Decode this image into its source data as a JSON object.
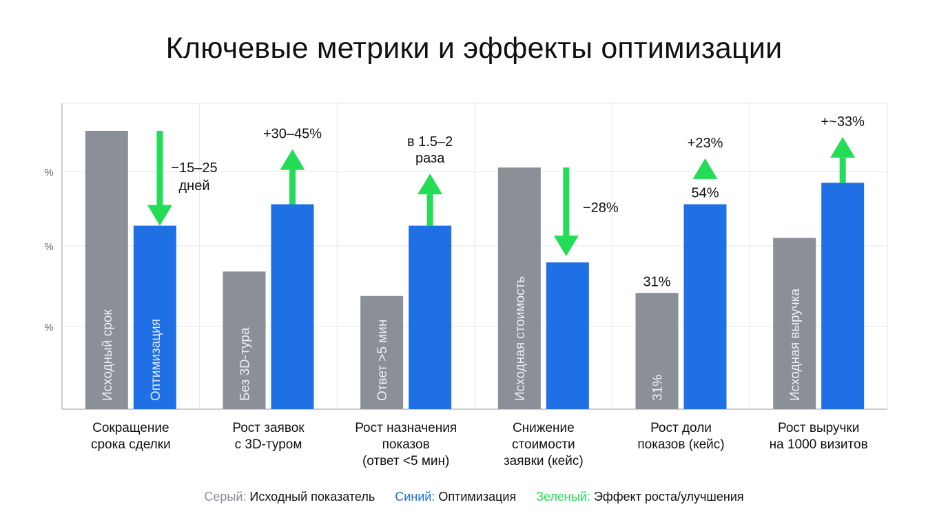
{
  "chart_data": {
    "type": "bar",
    "title": "Ключевые метрики и эффекты оптимизации",
    "y_tick_labels": [
      "%",
      "%",
      "%"
    ],
    "ylim": [
      0,
      100
    ],
    "categories": [
      [
        "Сокращение",
        "срока сделки"
      ],
      [
        "Рост заявок",
        "с 3D-туром"
      ],
      [
        "Рост назначения",
        "показов",
        "(ответ <5 мин)"
      ],
      [
        "Снижение",
        "стоимости",
        "заявки (кейс)"
      ],
      [
        "Рост доли",
        "показов (кейс)"
      ],
      [
        "Рост выручки",
        "на 1000 визитов"
      ]
    ],
    "series": [
      {
        "name": "Серый:",
        "color": "#8a8f98",
        "values": [
          91,
          45,
          37,
          79,
          38,
          56
        ],
        "inner_labels": [
          "Исходный срок",
          "Без 3D-тура",
          "Ответ >5 мин",
          "Исходная стоимость",
          "31%",
          "Исходная выручка"
        ],
        "top_labels": [
          "",
          "",
          "",
          "",
          "31%",
          ""
        ]
      },
      {
        "name": "Синий:",
        "color": "#1f6fe5",
        "values": [
          60,
          67,
          60,
          48,
          67,
          74
        ],
        "inner_labels": [
          "Оптимизация",
          "",
          "",
          "",
          "",
          ""
        ],
        "top_labels": [
          "",
          "",
          "",
          "",
          "54%",
          ""
        ]
      }
    ],
    "effects": [
      {
        "direction": "down",
        "from": 91,
        "to": 60,
        "label": [
          "−15–25",
          "дней"
        ]
      },
      {
        "direction": "up",
        "from": 67,
        "to": 85,
        "label": [
          "+30–45%"
        ]
      },
      {
        "direction": "up",
        "from": 60,
        "to": 77,
        "label": [
          "в 1.5–2",
          "раза"
        ]
      },
      {
        "direction": "down",
        "from": 79,
        "to": 50,
        "label": [
          "−28%"
        ]
      },
      {
        "direction": "up",
        "from": 76,
        "to": 82,
        "label": [
          "+23%"
        ]
      },
      {
        "direction": "up",
        "from": 74,
        "to": 89,
        "label": [
          "+~33%"
        ]
      }
    ],
    "effect_color": "#22dd55",
    "grid": true,
    "legend": {
      "position": "bottom",
      "items": [
        {
          "key": "Серый:",
          "text": "Исходный показатель",
          "color": "#8a8f98"
        },
        {
          "key": "Синий:",
          "text": "Оптимизация",
          "color": "#1f6fe5"
        },
        {
          "key": "Зеленый:",
          "text": "Эффект роста/улучшения",
          "color": "#22dd55"
        }
      ]
    }
  }
}
